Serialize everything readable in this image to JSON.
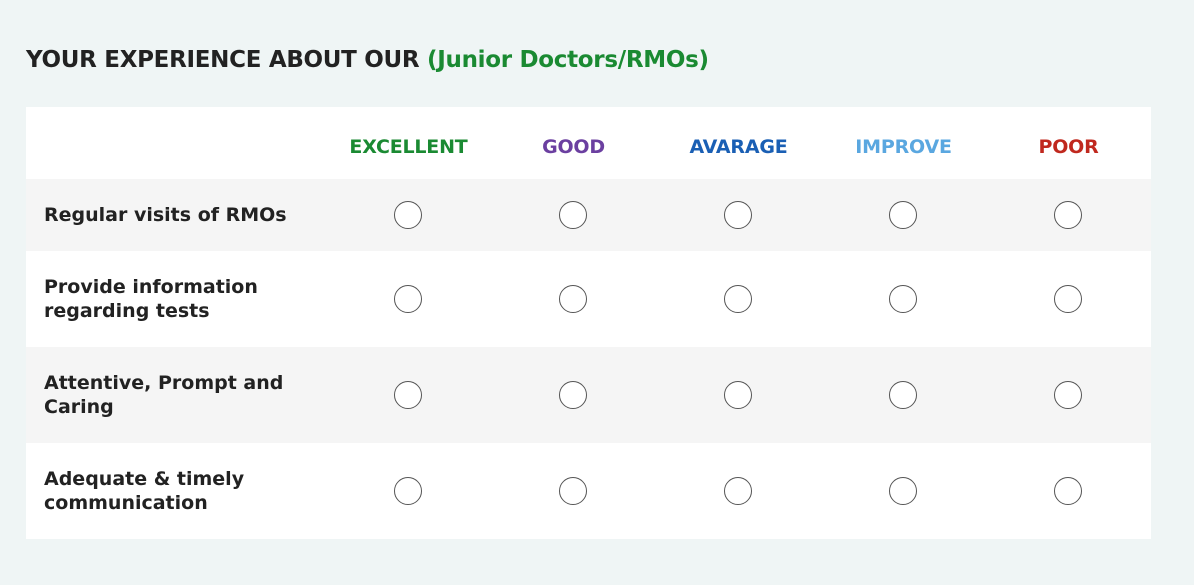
{
  "heading": {
    "prefix": "YOUR EXPERIENCE ABOUT OUR ",
    "accent": "(Junior Doctors/RMOs)",
    "accent_color": "#1a8a32"
  },
  "columns": [
    {
      "label": "EXCELLENT",
      "color": "#1a8a32"
    },
    {
      "label": "GOOD",
      "color": "#6b3fa0"
    },
    {
      "label": "AVARAGE",
      "color": "#1a5fb4"
    },
    {
      "label": "IMPROVE",
      "color": "#5aa7e0"
    },
    {
      "label": "POOR",
      "color": "#c0281e"
    }
  ],
  "rows": [
    {
      "label": "Regular visits of RMOs",
      "selected": null
    },
    {
      "label": "Provide information regarding tests",
      "selected": null
    },
    {
      "label": "Attentive, Prompt and Caring",
      "selected": null
    },
    {
      "label": "Adequate & timely communication",
      "selected": null
    }
  ]
}
